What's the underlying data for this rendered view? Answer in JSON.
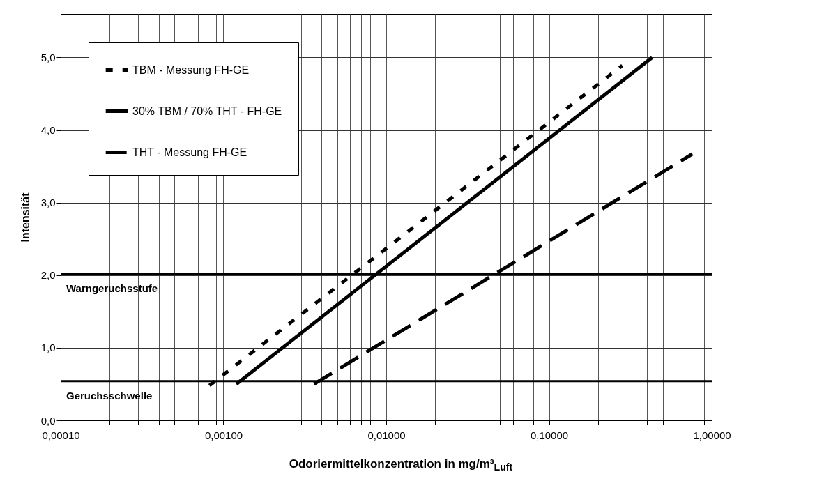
{
  "chart_data": {
    "type": "line",
    "xlabel": "Odoriermittelkonzentration in mg/m³$_{Luft}$",
    "ylabel": "Intensität",
    "log": "x",
    "xlim": [
      0.0001,
      1
    ],
    "xticks": [
      {
        "value": 0.0001,
        "label": "0,00010"
      },
      {
        "value": 0.0002,
        "label": null
      },
      {
        "value": 0.0003,
        "label": null
      },
      {
        "value": 0.0004,
        "label": null
      },
      {
        "value": 0.0005,
        "label": null
      },
      {
        "value": 0.0006,
        "label": null
      },
      {
        "value": 0.0007,
        "label": null
      },
      {
        "value": 0.0008,
        "label": null
      },
      {
        "value": 0.0009,
        "label": null
      },
      {
        "value": 0.001,
        "label": "0,00100"
      },
      {
        "value": 0.002,
        "label": null
      },
      {
        "value": 0.003,
        "label": null
      },
      {
        "value": 0.004,
        "label": null
      },
      {
        "value": 0.005,
        "label": null
      },
      {
        "value": 0.006,
        "label": null
      },
      {
        "value": 0.007,
        "label": null
      },
      {
        "value": 0.008,
        "label": null
      },
      {
        "value": 0.009,
        "label": null
      },
      {
        "value": 0.01,
        "label": "0,01000"
      },
      {
        "value": 0.02,
        "label": null
      },
      {
        "value": 0.03,
        "label": null
      },
      {
        "value": 0.04,
        "label": null
      },
      {
        "value": 0.05,
        "label": null
      },
      {
        "value": 0.06,
        "label": null
      },
      {
        "value": 0.07,
        "label": null
      },
      {
        "value": 0.08,
        "label": null
      },
      {
        "value": 0.09,
        "label": null
      },
      {
        "value": 0.1,
        "label": "0,10000"
      },
      {
        "value": 0.2,
        "label": null
      },
      {
        "value": 0.3,
        "label": null
      },
      {
        "value": 0.4,
        "label": null
      },
      {
        "value": 0.5,
        "label": null
      },
      {
        "value": 0.6,
        "label": null
      },
      {
        "value": 0.7,
        "label": null
      },
      {
        "value": 0.8,
        "label": null
      },
      {
        "value": 0.9,
        "label": null
      },
      {
        "value": 1,
        "label": "1,00000"
      }
    ],
    "ylim": [
      0,
      5.6
    ],
    "yticks": [
      {
        "value": 0,
        "label": "0,0"
      },
      {
        "value": 1,
        "label": "1,0"
      },
      {
        "value": 2,
        "label": "2,0"
      },
      {
        "value": 3,
        "label": "3,0"
      },
      {
        "value": 4,
        "label": "4,0"
      },
      {
        "value": 5,
        "label": "5,0"
      }
    ],
    "grid": true,
    "legend": "top left",
    "marker": "none",
    "series": [
      {
        "name": "TBM - Messung FH-GE",
        "color": "#000000",
        "line_style": "dotted",
        "x": [
          0.00082,
          0.282
        ],
        "values": [
          0.48,
          4.89
        ]
      },
      {
        "name": "30% TBM / 70% THT - FH-GE",
        "color": "#000000",
        "line_style": "solid",
        "x": [
          0.0012,
          0.43
        ],
        "values": [
          0.5,
          5.0
        ]
      },
      {
        "name": "THT - Messung FH-GE",
        "color": "#000000",
        "line_style": "dashed",
        "x": [
          0.0036,
          0.76
        ],
        "values": [
          0.5,
          3.67
        ]
      }
    ],
    "ref_lines": [
      {
        "axis": "y",
        "value": 0.54,
        "label": "Geruchsschwelle",
        "color": "#000000"
      },
      {
        "axis": "y",
        "value": 2.02,
        "label": "Warngeruchsstufe",
        "color": "#000000"
      }
    ]
  }
}
